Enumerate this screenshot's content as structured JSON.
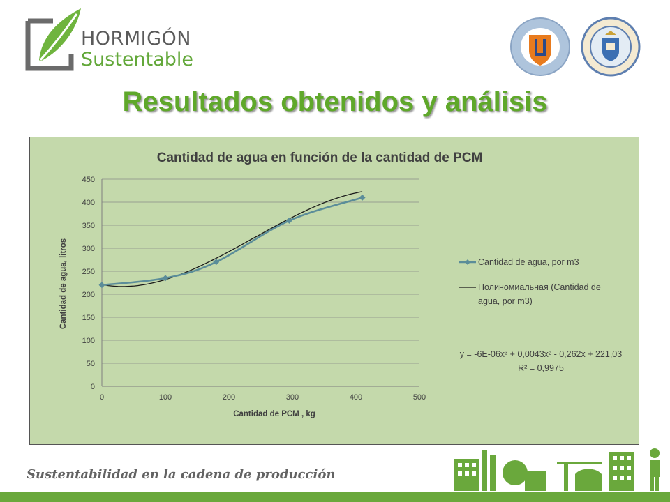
{
  "header": {
    "brand_line1": "HORMIGÓN",
    "brand_line2": "Sustentable",
    "seal_left_text": "UNIVERSIDAD CATÓLICA DEL NORTE · CHILE",
    "seal_right_text": "UNIVERSIDAD POLITÉCNICA DE MADRID"
  },
  "slide_title": "Resultados obtenidos y análisis",
  "chart_data": {
    "type": "scatter",
    "title": "Cantidad de agua en función de la cantidad de PCM",
    "xlabel": "Cantidad  de PCM , kg",
    "ylabel": "Cantidad de agua,  litros",
    "xlim": [
      0,
      500
    ],
    "ylim": [
      0,
      450
    ],
    "xticks": [
      "0",
      "100",
      "200",
      "300",
      "400",
      "500"
    ],
    "yticks": [
      "0",
      "50",
      "100",
      "150",
      "200",
      "250",
      "300",
      "350",
      "400",
      "450"
    ],
    "grid": "horizontal",
    "legend_position": "right",
    "series": [
      {
        "name": "Cantidad de agua, por m3",
        "x": [
          0,
          100,
          180,
          295,
          410
        ],
        "y": [
          220,
          235,
          270,
          360,
          410
        ],
        "color": "#5b8d99",
        "marker": "diamond"
      }
    ],
    "trendline": {
      "name": "Полиномиальная (Cantidad de agua, por m3)",
      "legend_line1": "Полиномиальная (Cantidad de",
      "legend_line2": "agua, por m3)",
      "type": "polynomial",
      "equation": "y = -6E-06x³ + 0,0043x² - 0,262x + 221,03",
      "r2": "R² = 0,9975",
      "color": "#1a1a1a"
    }
  },
  "footer": {
    "tagline": "Sustentabilidad en la cadena de producción",
    "accent_color": "#6aa83c"
  }
}
